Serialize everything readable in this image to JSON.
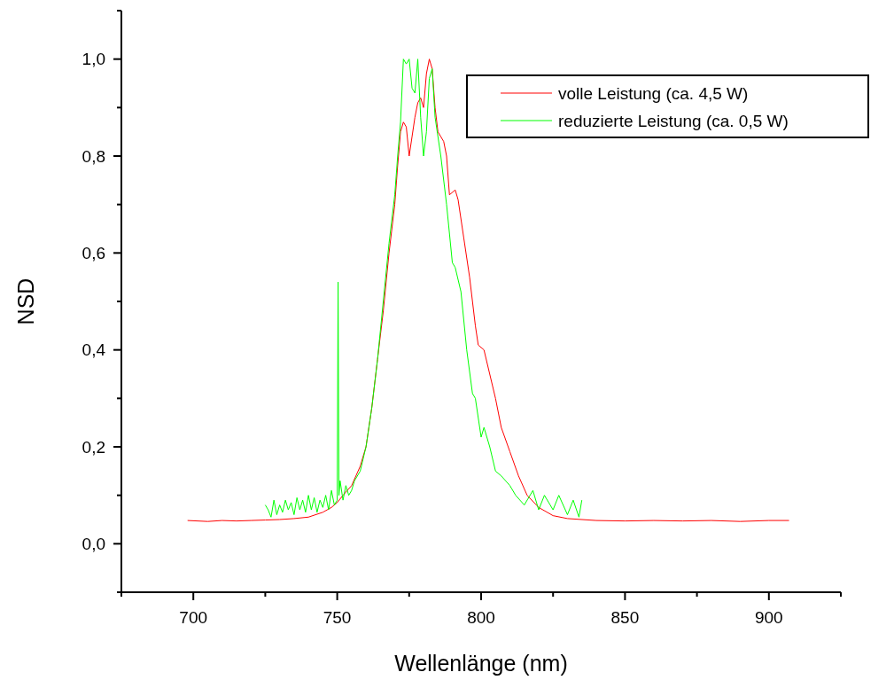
{
  "chart_data": {
    "type": "line",
    "xlabel": "Wellenlänge (nm)",
    "ylabel": "NSD",
    "xlim": [
      675,
      925
    ],
    "xticks": [
      {
        "value": 675,
        "label": null
      },
      700,
      {
        "value": 725,
        "label": null
      },
      750,
      {
        "value": 775,
        "label": null
      },
      800,
      {
        "value": 825,
        "label": null
      },
      850,
      {
        "value": 875,
        "label": null
      },
      900,
      {
        "value": 925,
        "label": null
      }
    ],
    "ylim": [
      -0.1,
      1.1
    ],
    "yticks": [
      {
        "value": -0.1,
        "label": null
      },
      {
        "value": 0,
        "label": "0,0"
      },
      {
        "value": 0.1,
        "label": null
      },
      {
        "value": 0.2,
        "label": "0,2"
      },
      {
        "value": 0.3,
        "label": null
      },
      {
        "value": 0.4,
        "label": "0,4"
      },
      {
        "value": 0.5,
        "label": null
      },
      {
        "value": 0.6,
        "label": "0,6"
      },
      {
        "value": 0.7,
        "label": null
      },
      {
        "value": 0.8,
        "label": "0,8"
      },
      {
        "value": 0.9,
        "label": null
      },
      {
        "value": 1.0,
        "label": "1,0"
      },
      {
        "value": 1.1,
        "label": null
      }
    ],
    "grid": false,
    "legend": "top right",
    "marker": "none",
    "line_style": "solid",
    "series": [
      {
        "name": "volle Leistung (ca. 4,5 W)",
        "color": "#ff0000",
        "x": [
          698,
          705,
          710,
          715,
          720,
          725,
          730,
          735,
          740,
          745,
          748,
          750,
          752,
          755,
          758,
          760,
          762,
          764,
          766,
          768,
          770,
          771,
          772,
          773,
          774,
          775,
          776,
          777,
          778,
          779,
          780,
          781,
          782,
          783,
          784,
          785,
          787,
          788,
          789,
          791,
          792,
          794,
          796,
          798,
          799,
          801,
          803,
          805,
          807,
          810,
          813,
          816,
          820,
          825,
          830,
          840,
          850,
          860,
          870,
          880,
          890,
          900,
          907
        ],
        "values": [
          0.048,
          0.046,
          0.048,
          0.047,
          0.048,
          0.049,
          0.05,
          0.052,
          0.055,
          0.065,
          0.075,
          0.085,
          0.1,
          0.12,
          0.16,
          0.2,
          0.28,
          0.38,
          0.48,
          0.6,
          0.7,
          0.78,
          0.85,
          0.87,
          0.86,
          0.8,
          0.84,
          0.88,
          0.91,
          0.92,
          0.9,
          0.97,
          1.0,
          0.98,
          0.9,
          0.85,
          0.83,
          0.8,
          0.72,
          0.73,
          0.71,
          0.63,
          0.55,
          0.45,
          0.41,
          0.4,
          0.35,
          0.3,
          0.24,
          0.19,
          0.14,
          0.1,
          0.075,
          0.058,
          0.052,
          0.048,
          0.047,
          0.048,
          0.047,
          0.048,
          0.046,
          0.048,
          0.048
        ]
      },
      {
        "name": "reduzierte Leistung (ca. 0,5 W)",
        "color": "#00ff00",
        "x": [
          725,
          726,
          727,
          728,
          729,
          730,
          731,
          732,
          733,
          734,
          735,
          736,
          737,
          738,
          739,
          740,
          741,
          742,
          743,
          744,
          745,
          746,
          747,
          748,
          749,
          750,
          750.3,
          750.6,
          751,
          752,
          753,
          754,
          755,
          756,
          758,
          760,
          762,
          764,
          766,
          768,
          770,
          771,
          772,
          773,
          774,
          775,
          776,
          777,
          778,
          779,
          780,
          781,
          782,
          783,
          784,
          786,
          788,
          790,
          791,
          793,
          795,
          797,
          798,
          800,
          801,
          803,
          805,
          807,
          810,
          812,
          815,
          818,
          820,
          822,
          825,
          827,
          830,
          832,
          834,
          835
        ],
        "values": [
          0.08,
          0.07,
          0.055,
          0.09,
          0.06,
          0.08,
          0.065,
          0.09,
          0.07,
          0.085,
          0.06,
          0.095,
          0.07,
          0.09,
          0.065,
          0.1,
          0.07,
          0.095,
          0.065,
          0.09,
          0.075,
          0.1,
          0.07,
          0.11,
          0.08,
          0.09,
          0.54,
          0.1,
          0.13,
          0.09,
          0.12,
          0.1,
          0.11,
          0.13,
          0.15,
          0.2,
          0.28,
          0.38,
          0.5,
          0.62,
          0.72,
          0.8,
          0.87,
          1.0,
          0.99,
          1.0,
          0.94,
          0.93,
          1.0,
          0.88,
          0.8,
          0.85,
          0.96,
          0.98,
          0.88,
          0.8,
          0.7,
          0.58,
          0.57,
          0.52,
          0.4,
          0.31,
          0.3,
          0.22,
          0.24,
          0.2,
          0.15,
          0.14,
          0.12,
          0.1,
          0.08,
          0.11,
          0.07,
          0.1,
          0.07,
          0.1,
          0.06,
          0.09,
          0.055,
          0.09
        ]
      }
    ]
  }
}
